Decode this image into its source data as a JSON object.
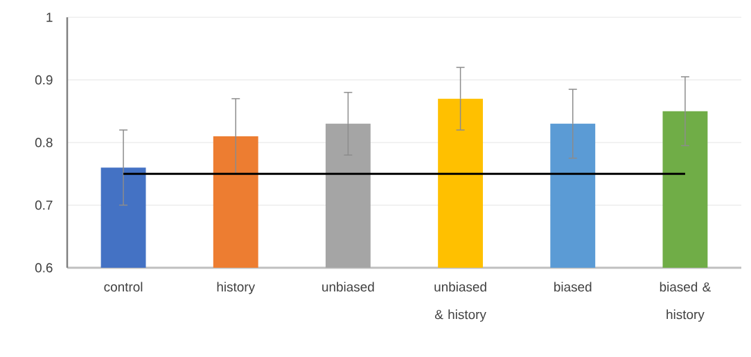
{
  "chart_data": {
    "type": "bar",
    "categories": [
      "control",
      "history",
      "unbiased",
      "unbiased & history",
      "biased",
      "biased & history"
    ],
    "values": [
      0.76,
      0.81,
      0.83,
      0.87,
      0.83,
      0.85
    ],
    "errors": [
      0.06,
      0.06,
      0.05,
      0.05,
      0.055,
      0.055
    ],
    "colors": [
      "#4472c4",
      "#ed7d31",
      "#a5a5a5",
      "#ffc000",
      "#5b9bd5",
      "#70ad47"
    ],
    "ylim": [
      0.6,
      1
    ],
    "yticks": [
      0.6,
      0.7,
      0.8,
      0.9,
      1
    ],
    "grid": "y",
    "ref_lines": [
      {
        "axis": "y",
        "value": 0.75,
        "color": "#000000"
      }
    ]
  }
}
